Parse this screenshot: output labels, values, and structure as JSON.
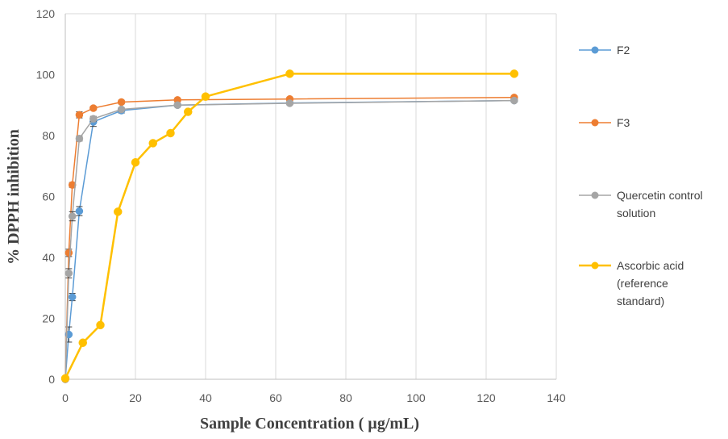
{
  "chart_data": {
    "type": "line",
    "xlabel": "Sample Concentration ( µg/mL)",
    "ylabel": "% DPPH inhibition",
    "xlim": [
      0,
      140
    ],
    "ylim": [
      0,
      120
    ],
    "xticks": [
      0,
      20,
      40,
      60,
      80,
      100,
      120,
      140
    ],
    "yticks": [
      0,
      20,
      40,
      60,
      80,
      100,
      120
    ],
    "grid": "vertical",
    "legend_position": "right",
    "series": [
      {
        "name": "F2",
        "color": "#5B9BD5",
        "x": [
          0,
          1,
          2,
          4,
          8,
          16,
          32,
          64,
          128
        ],
        "y": [
          0,
          14.7,
          27,
          55.2,
          84.5,
          88.2,
          90,
          90.7,
          91.5
        ],
        "error": [
          0,
          2.5,
          1.2,
          1.5,
          1.5,
          0.8,
          0.5,
          0.5,
          0.5
        ]
      },
      {
        "name": "F3",
        "color": "#ED7D31",
        "x": [
          0,
          1,
          2,
          4,
          8,
          16,
          32,
          64,
          128
        ],
        "y": [
          0,
          41.5,
          63.8,
          86.8,
          89,
          91,
          91.7,
          92,
          92.5
        ],
        "error": [
          0,
          1.2,
          0.8,
          1,
          0.6,
          0.6,
          0.5,
          0.5,
          0.5
        ]
      },
      {
        "name": "Quercetin control solution",
        "color": "#A5A5A5",
        "x": [
          0,
          1,
          2,
          4,
          8,
          16,
          32,
          64,
          128
        ],
        "y": [
          0,
          34.8,
          53.5,
          79,
          85.5,
          88.6,
          90,
          90.6,
          91.5
        ],
        "error": [
          0,
          1.5,
          1.5,
          0.8,
          0.8,
          0.6,
          0.5,
          0.5,
          0.5
        ]
      },
      {
        "name": "Ascorbic acid (reference standard)",
        "legend_lines": [
          "Ascorbic acid",
          "(reference",
          "standard)"
        ],
        "color": "#FFC000",
        "x": [
          0,
          5,
          10,
          15,
          20,
          25,
          30,
          35,
          40,
          64,
          128
        ],
        "y": [
          0.3,
          12,
          17.8,
          55,
          71.2,
          77.5,
          80.8,
          87.8,
          92.8,
          100.3,
          100.3
        ],
        "error": []
      }
    ]
  }
}
